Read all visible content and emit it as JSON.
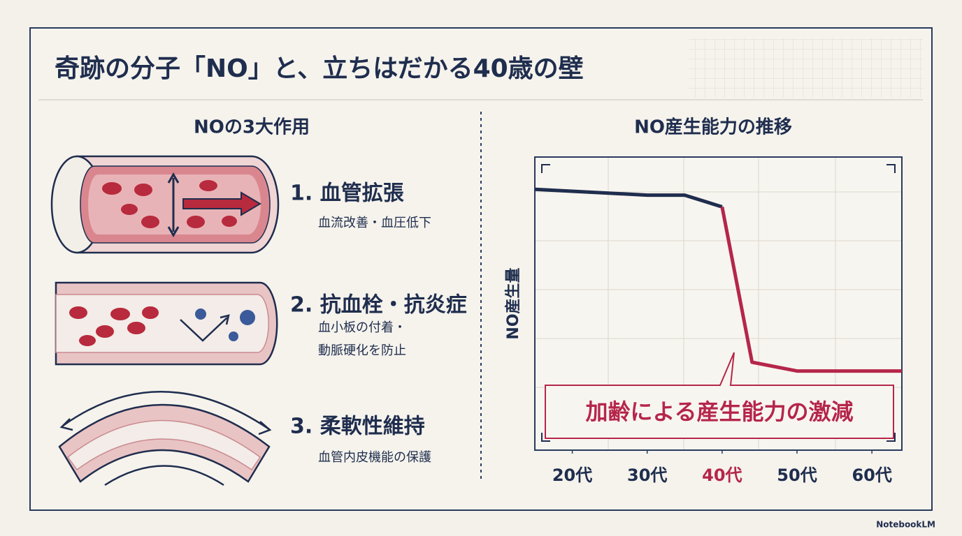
{
  "title": "奇跡の分子「NO」と、立ちはだかる40歳の壁",
  "left": {
    "heading": "NOの3大作用",
    "items": [
      {
        "title": "1. 血管拡張",
        "lines": [
          "血流改善・血圧低下"
        ]
      },
      {
        "title": "2. 抗血栓・抗炎症",
        "lines": [
          "血小板の付着・",
          "動脈硬化を防止"
        ]
      },
      {
        "title": "3. 柔軟性維持",
        "lines": [
          "血管内皮機能の保護"
        ]
      }
    ]
  },
  "chart_data": {
    "type": "line",
    "title": "NO産生能力の推移",
    "y_label": "NO産生量",
    "annotation": "加齢による産生能力の激減",
    "x": [
      15,
      30,
      35,
      40,
      44,
      50,
      64
    ],
    "values": [
      89,
      87,
      87,
      83,
      30,
      27,
      27
    ],
    "xlim": [
      15,
      64
    ],
    "ylim": [
      0,
      100
    ],
    "xticks": [
      {
        "value": 20,
        "label": "20代"
      },
      {
        "value": 30,
        "label": "30代"
      },
      {
        "value": 40,
        "label": "40代"
      },
      {
        "value": 50,
        "label": "50代"
      },
      {
        "value": 60,
        "label": "60代"
      }
    ],
    "color": "#1f2d4e",
    "highlight": {
      "from_x": 40,
      "color": "#b5264a"
    }
  },
  "footer": "NotebookLM"
}
